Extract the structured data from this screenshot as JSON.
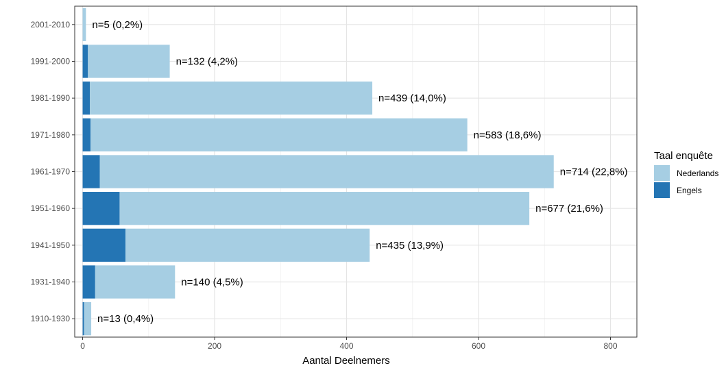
{
  "chart_data": {
    "type": "bar",
    "orientation": "horizontal",
    "stacked": true,
    "categories": [
      "1910-1930",
      "1931-1940",
      "1941-1950",
      "1951-1960",
      "1961-1970",
      "1971-1980",
      "1981-1990",
      "1991-2000",
      "2001-2010"
    ],
    "series": [
      {
        "name": "Engels",
        "color": "#2475b4",
        "values": [
          2,
          19,
          65,
          56,
          26,
          12,
          11,
          8,
          0
        ]
      },
      {
        "name": "Nederlands",
        "color": "#a6cee3",
        "values": [
          11,
          121,
          370,
          621,
          688,
          571,
          428,
          124,
          5
        ]
      }
    ],
    "bar_labels": [
      "n=13 (0,4%)",
      "n=140 (4,5%)",
      "n=435 (13,9%)",
      "n=677 (21,6%)",
      "n=714 (22,8%)",
      "n=583 (18,6%)",
      "n=439 (14,0%)",
      "n=132 (4,2%)",
      "n=5 (0,2%)"
    ],
    "xlabel": "Aantal Deelnemers",
    "ylabel": "",
    "xlim": [
      -12,
      840
    ],
    "x_ticks": [
      "0",
      "200",
      "400",
      "600",
      "800"
    ],
    "grid": true,
    "legend": {
      "title": "Taal enquête",
      "position": "right",
      "entries": [
        {
          "name": "Nederlands",
          "color": "#a6cee3"
        },
        {
          "name": "Engels",
          "color": "#2475b4"
        }
      ]
    }
  }
}
